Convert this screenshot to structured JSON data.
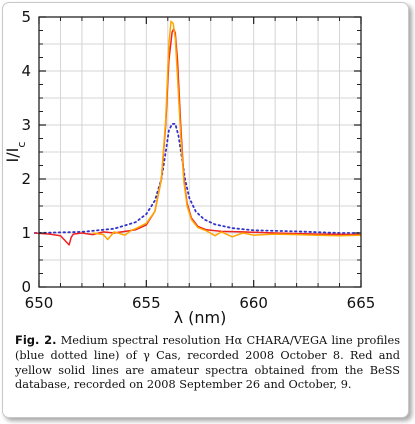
{
  "chart_data": {
    "type": "line",
    "xlabel": "λ (nm)",
    "ylabel": "I/I",
    "ylabel_subscript": "c",
    "xlim": [
      650,
      665
    ],
    "ylim": [
      0,
      5
    ],
    "xticks": [
      "650",
      "655",
      "660",
      "665"
    ],
    "yticks": [
      "0",
      "1",
      "2",
      "3",
      "4",
      "5"
    ],
    "grid": true,
    "series": [
      {
        "style": "dotted",
        "color": "#3333cc",
        "x": [
          649.8,
          652.0,
          653.5,
          654.5,
          655.0,
          655.4,
          655.7,
          655.9,
          656.05,
          656.2,
          656.35,
          656.5,
          656.65,
          656.8,
          657.0,
          657.3,
          657.7,
          658.2,
          659.0,
          660.0,
          662.0,
          664.0,
          665.0
        ],
        "y": [
          1.0,
          1.02,
          1.08,
          1.2,
          1.35,
          1.6,
          2.0,
          2.5,
          2.9,
          3.02,
          3.02,
          2.8,
          2.4,
          2.0,
          1.65,
          1.4,
          1.25,
          1.16,
          1.09,
          1.05,
          1.03,
          1.0,
          1.0
        ]
      },
      {
        "style": "solid",
        "color": "#ee2222",
        "x": [
          649.8,
          650.5,
          651.0,
          651.4,
          651.5,
          651.6,
          652.0,
          652.5,
          653.0,
          653.5,
          654.0,
          654.5,
          655.0,
          655.4,
          655.7,
          655.9,
          656.05,
          656.2,
          656.28,
          656.35,
          656.45,
          656.6,
          656.75,
          656.9,
          657.1,
          657.4,
          657.8,
          658.5,
          659.5,
          661.0,
          663.0,
          665.0
        ],
        "y": [
          1.0,
          0.98,
          0.95,
          0.78,
          0.92,
          0.98,
          1.0,
          0.97,
          1.02,
          1.0,
          1.03,
          1.06,
          1.15,
          1.4,
          2.0,
          3.0,
          4.2,
          4.72,
          4.78,
          4.7,
          4.2,
          3.0,
          2.0,
          1.55,
          1.28,
          1.12,
          1.06,
          1.03,
          1.02,
          1.0,
          0.98,
          0.97
        ]
      },
      {
        "style": "solid",
        "color": "#ffa500",
        "x": [
          652.5,
          653.0,
          653.2,
          653.5,
          654.0,
          654.3,
          654.5,
          655.0,
          655.4,
          655.7,
          655.9,
          656.05,
          656.15,
          656.25,
          656.35,
          656.45,
          656.6,
          656.75,
          656.9,
          657.1,
          657.4,
          657.8,
          658.2,
          658.5,
          659.0,
          659.5,
          660.0,
          661.0,
          662.0,
          663.0,
          664.0,
          665.0
        ],
        "y": [
          1.0,
          0.97,
          0.88,
          1.02,
          0.96,
          1.05,
          1.08,
          1.18,
          1.4,
          2.0,
          3.1,
          4.5,
          4.92,
          4.88,
          4.6,
          3.9,
          2.8,
          1.95,
          1.5,
          1.25,
          1.1,
          1.04,
          0.95,
          1.02,
          0.93,
          1.0,
          0.96,
          0.98,
          0.97,
          0.96,
          0.95,
          0.96
        ]
      }
    ]
  },
  "caption": {
    "label": "Fig. 2.",
    "text": "Medium spectral resolution Hα CHARA/VEGA line profiles (blue dotted line) of γ Cas, recorded 2008 October 8. Red and yellow solid lines are amateur spectra obtained from the BeSS database, recorded on 2008 September 26 and October, 9."
  }
}
